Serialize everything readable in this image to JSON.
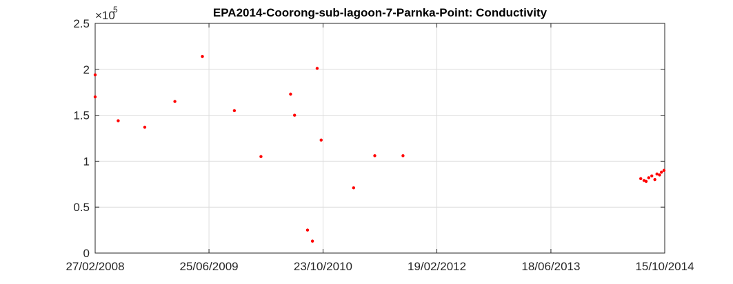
{
  "chart_data": {
    "type": "scatter",
    "title": "EPA2014-Coorong-sub-lagoon-7-Parnka-Point: Conductivity",
    "xlabel": "",
    "ylabel": "",
    "y_exponent_label": "×10",
    "y_exponent_power": "5",
    "x_ticks": [
      "27/02/2008",
      "25/06/2009",
      "23/10/2010",
      "19/02/2012",
      "18/06/2013",
      "15/10/2014"
    ],
    "y_ticks": [
      "0",
      "0.5",
      "1",
      "1.5",
      "2",
      "2.5"
    ],
    "xlim": [
      "27/02/2008",
      "15/10/2014"
    ],
    "ylim": [
      0,
      250000
    ],
    "grid": true,
    "marker_color": "#ff0000",
    "series": [
      {
        "points": [
          {
            "x": "27/02/2008",
            "y": 194000
          },
          {
            "x": "27/02/2008",
            "y": 170000
          },
          {
            "x": "04/06/2008",
            "y": 144000
          },
          {
            "x": "25/09/2008",
            "y": 137000
          },
          {
            "x": "31/01/2009",
            "y": 165000
          },
          {
            "x": "28/05/2009",
            "y": 214000
          },
          {
            "x": "11/10/2009",
            "y": 155000
          },
          {
            "x": "01/02/2010",
            "y": 105000
          },
          {
            "x": "07/06/2010",
            "y": 173000
          },
          {
            "x": "28/09/2010",
            "y": 201000
          },
          {
            "x": "24/06/2010",
            "y": 150000
          },
          {
            "x": "18/08/2010",
            "y": 25000
          },
          {
            "x": "08/09/2010",
            "y": 13000
          },
          {
            "x": "15/10/2010",
            "y": 123000
          },
          {
            "x": "02/03/2011",
            "y": 71000
          },
          {
            "x": "31/05/2011",
            "y": 106000
          },
          {
            "x": "28/09/2011",
            "y": 106000
          },
          {
            "x": "05/07/2014",
            "y": 81000
          },
          {
            "x": "19/07/2014",
            "y": 79000
          },
          {
            "x": "28/07/2014",
            "y": 78000
          },
          {
            "x": "08/08/2014",
            "y": 82000
          },
          {
            "x": "21/08/2014",
            "y": 84000
          },
          {
            "x": "03/09/2014",
            "y": 80000
          },
          {
            "x": "12/09/2014",
            "y": 86000
          },
          {
            "x": "23/09/2014",
            "y": 85000
          },
          {
            "x": "01/10/2014",
            "y": 88000
          },
          {
            "x": "12/10/2014",
            "y": 90000
          }
        ]
      }
    ]
  }
}
